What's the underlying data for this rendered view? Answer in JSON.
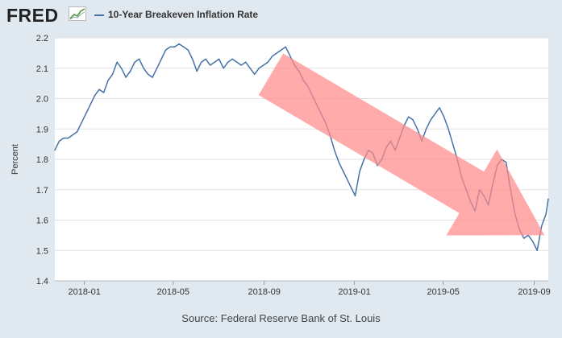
{
  "header": {
    "logo_text": "FRED",
    "legend_label": "10-Year Breakeven Inflation Rate",
    "series_color": "#4572a7"
  },
  "source": "Source: Federal Reserve Bank of St. Louis",
  "chart_data": {
    "type": "line",
    "title": "",
    "xlabel": "",
    "ylabel": "Percent",
    "ylim": [
      1.4,
      2.2
    ],
    "yticks": [
      "1.4",
      "1.5",
      "1.6",
      "1.7",
      "1.8",
      "1.9",
      "2.0",
      "2.1",
      "2.2"
    ],
    "xlim": [
      "2017-11-22",
      "2019-09-20"
    ],
    "xticks": [
      {
        "date": "2018-01-01",
        "label": "2018-01"
      },
      {
        "date": "2018-05-01",
        "label": "2018-05"
      },
      {
        "date": "2018-09-01",
        "label": "2018-09"
      },
      {
        "date": "2019-01-01",
        "label": "2019-01"
      },
      {
        "date": "2019-05-01",
        "label": "2019-05"
      },
      {
        "date": "2019-09-01",
        "label": "2019-09"
      }
    ],
    "grid": "horizontal",
    "series": [
      {
        "name": "10-Year Breakeven Inflation Rate",
        "color": "#4572a7",
        "points": [
          [
            "2017-11-22",
            1.83
          ],
          [
            "2017-11-28",
            1.86
          ],
          [
            "2017-12-04",
            1.87
          ],
          [
            "2017-12-10",
            1.87
          ],
          [
            "2017-12-16",
            1.88
          ],
          [
            "2017-12-22",
            1.89
          ],
          [
            "2017-12-28",
            1.92
          ],
          [
            "2018-01-03",
            1.95
          ],
          [
            "2018-01-09",
            1.98
          ],
          [
            "2018-01-15",
            2.01
          ],
          [
            "2018-01-21",
            2.03
          ],
          [
            "2018-01-27",
            2.02
          ],
          [
            "2018-02-02",
            2.06
          ],
          [
            "2018-02-08",
            2.08
          ],
          [
            "2018-02-14",
            2.12
          ],
          [
            "2018-02-20",
            2.1
          ],
          [
            "2018-02-26",
            2.07
          ],
          [
            "2018-03-04",
            2.09
          ],
          [
            "2018-03-10",
            2.12
          ],
          [
            "2018-03-16",
            2.13
          ],
          [
            "2018-03-22",
            2.1
          ],
          [
            "2018-03-28",
            2.08
          ],
          [
            "2018-04-03",
            2.07
          ],
          [
            "2018-04-09",
            2.1
          ],
          [
            "2018-04-15",
            2.13
          ],
          [
            "2018-04-21",
            2.16
          ],
          [
            "2018-04-27",
            2.17
          ],
          [
            "2018-05-03",
            2.17
          ],
          [
            "2018-05-09",
            2.18
          ],
          [
            "2018-05-15",
            2.17
          ],
          [
            "2018-05-21",
            2.16
          ],
          [
            "2018-05-27",
            2.13
          ],
          [
            "2018-06-02",
            2.09
          ],
          [
            "2018-06-08",
            2.12
          ],
          [
            "2018-06-14",
            2.13
          ],
          [
            "2018-06-20",
            2.11
          ],
          [
            "2018-06-26",
            2.12
          ],
          [
            "2018-07-02",
            2.13
          ],
          [
            "2018-07-08",
            2.1
          ],
          [
            "2018-07-14",
            2.12
          ],
          [
            "2018-07-20",
            2.13
          ],
          [
            "2018-07-26",
            2.12
          ],
          [
            "2018-08-01",
            2.11
          ],
          [
            "2018-08-07",
            2.12
          ],
          [
            "2018-08-13",
            2.1
          ],
          [
            "2018-08-19",
            2.08
          ],
          [
            "2018-08-25",
            2.1
          ],
          [
            "2018-08-31",
            2.11
          ],
          [
            "2018-09-06",
            2.12
          ],
          [
            "2018-09-12",
            2.14
          ],
          [
            "2018-09-18",
            2.15
          ],
          [
            "2018-09-24",
            2.16
          ],
          [
            "2018-09-30",
            2.17
          ],
          [
            "2018-10-06",
            2.14
          ],
          [
            "2018-10-12",
            2.11
          ],
          [
            "2018-10-18",
            2.09
          ],
          [
            "2018-10-24",
            2.06
          ],
          [
            "2018-10-30",
            2.04
          ],
          [
            "2018-11-05",
            2.01
          ],
          [
            "2018-11-11",
            1.98
          ],
          [
            "2018-11-17",
            1.95
          ],
          [
            "2018-11-23",
            1.92
          ],
          [
            "2018-11-29",
            1.88
          ],
          [
            "2018-12-05",
            1.83
          ],
          [
            "2018-12-11",
            1.79
          ],
          [
            "2018-12-17",
            1.76
          ],
          [
            "2018-12-23",
            1.73
          ],
          [
            "2018-12-29",
            1.7
          ],
          [
            "2019-01-02",
            1.68
          ],
          [
            "2019-01-08",
            1.76
          ],
          [
            "2019-01-14",
            1.8
          ],
          [
            "2019-01-20",
            1.83
          ],
          [
            "2019-01-26",
            1.82
          ],
          [
            "2019-02-01",
            1.78
          ],
          [
            "2019-02-07",
            1.8
          ],
          [
            "2019-02-13",
            1.84
          ],
          [
            "2019-02-19",
            1.86
          ],
          [
            "2019-02-25",
            1.83
          ],
          [
            "2019-03-03",
            1.87
          ],
          [
            "2019-03-09",
            1.91
          ],
          [
            "2019-03-15",
            1.94
          ],
          [
            "2019-03-21",
            1.93
          ],
          [
            "2019-03-27",
            1.9
          ],
          [
            "2019-04-02",
            1.86
          ],
          [
            "2019-04-08",
            1.9
          ],
          [
            "2019-04-14",
            1.93
          ],
          [
            "2019-04-20",
            1.95
          ],
          [
            "2019-04-26",
            1.97
          ],
          [
            "2019-05-02",
            1.94
          ],
          [
            "2019-05-08",
            1.9
          ],
          [
            "2019-05-14",
            1.85
          ],
          [
            "2019-05-20",
            1.8
          ],
          [
            "2019-05-26",
            1.74
          ],
          [
            "2019-06-01",
            1.7
          ],
          [
            "2019-06-07",
            1.66
          ],
          [
            "2019-06-13",
            1.63
          ],
          [
            "2019-06-19",
            1.7
          ],
          [
            "2019-06-25",
            1.68
          ],
          [
            "2019-07-01",
            1.65
          ],
          [
            "2019-07-07",
            1.72
          ],
          [
            "2019-07-13",
            1.78
          ],
          [
            "2019-07-19",
            1.8
          ],
          [
            "2019-07-25",
            1.79
          ],
          [
            "2019-07-31",
            1.7
          ],
          [
            "2019-08-06",
            1.62
          ],
          [
            "2019-08-12",
            1.57
          ],
          [
            "2019-08-18",
            1.54
          ],
          [
            "2019-08-24",
            1.55
          ],
          [
            "2019-08-30",
            1.53
          ],
          [
            "2019-09-05",
            1.5
          ],
          [
            "2019-09-11",
            1.58
          ],
          [
            "2019-09-17",
            1.62
          ],
          [
            "2019-09-20",
            1.67
          ]
        ]
      }
    ],
    "annotation": {
      "type": "arrow",
      "color": "#ff8a8a",
      "from": [
        "2018-09-10",
        2.08
      ],
      "to": [
        "2019-09-15",
        1.55
      ]
    }
  }
}
